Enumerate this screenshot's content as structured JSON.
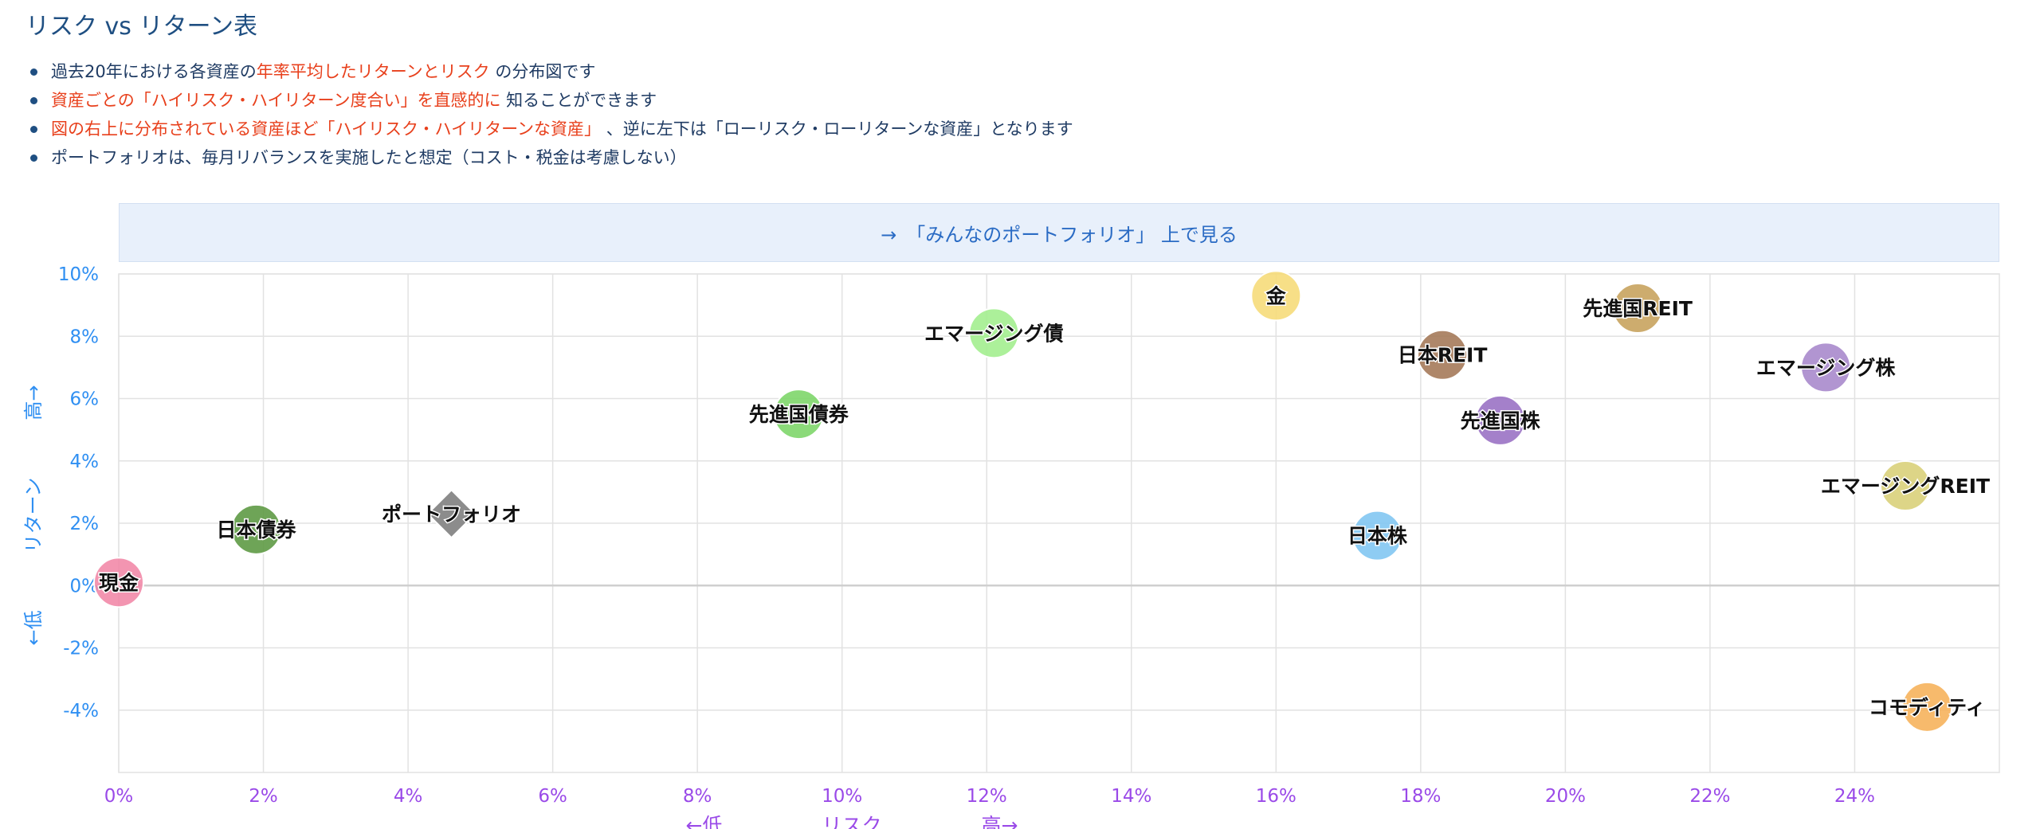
{
  "page": {
    "title": "リスク vs リターン表",
    "bullets": [
      [
        {
          "text": "過去20年における各資産の",
          "red": false
        },
        {
          "text": "年率平均したリターンとリスク",
          "red": true
        },
        {
          "text": " の分布図です",
          "red": false
        }
      ],
      [
        {
          "text": "資産ごとの「ハイリスク・ハイリターン度合い」を直感的に",
          "red": true
        },
        {
          "text": " 知ることができます",
          "red": false
        }
      ],
      [
        {
          "text": "図の右上に分布されている資産ほど「ハイリスク・ハイリターンな資産」",
          "red": true
        },
        {
          "text": " 、逆に左下は「ローリスク・ローリターンな資産」となります",
          "red": false
        }
      ],
      [
        {
          "text": "ポートフォリオは、毎月リバランスを実施したと想定（コスト・税金は考慮しない）",
          "red": false
        }
      ]
    ],
    "link_label": "→　「みんなのポートフォリオ」 上で見る"
  },
  "chart_data": {
    "type": "scatter",
    "xlabel": "←低　　　　　リスク　　　　　高→",
    "ylabel": "←低　　　リターン　　　高→",
    "xlim": [
      0,
      26
    ],
    "ylim": [
      -6,
      10
    ],
    "x_ticks": [
      0,
      2,
      4,
      6,
      8,
      10,
      12,
      14,
      16,
      18,
      20,
      22,
      24
    ],
    "y_ticks": [
      10,
      8,
      6,
      4,
      2,
      0,
      -2,
      -4
    ],
    "tick_suffix": "%",
    "grid": true,
    "points": [
      {
        "name": "現金",
        "x": 0.0,
        "y": 0.1,
        "color": "#f28aa8",
        "shape": "circle"
      },
      {
        "name": "日本債券",
        "x": 1.9,
        "y": 1.8,
        "color": "#5e9a45",
        "shape": "circle"
      },
      {
        "name": "ポートフォリオ",
        "x": 4.6,
        "y": 2.3,
        "color": "#8c8c8c",
        "shape": "diamond"
      },
      {
        "name": "先進国債券",
        "x": 9.4,
        "y": 5.5,
        "color": "#7ed66a",
        "shape": "circle"
      },
      {
        "name": "エマージング債",
        "x": 12.1,
        "y": 8.1,
        "color": "#a3ee8f",
        "shape": "circle"
      },
      {
        "name": "金",
        "x": 16.0,
        "y": 9.3,
        "color": "#f6dc7a",
        "shape": "circle"
      },
      {
        "name": "日本株",
        "x": 17.4,
        "y": 1.6,
        "color": "#82c6f2",
        "shape": "circle"
      },
      {
        "name": "日本REIT",
        "x": 18.3,
        "y": 7.4,
        "color": "#a57a5a",
        "shape": "circle"
      },
      {
        "name": "先進国株",
        "x": 19.1,
        "y": 5.3,
        "color": "#9a72c4",
        "shape": "circle"
      },
      {
        "name": "先進国REIT",
        "x": 21.0,
        "y": 8.9,
        "color": "#c8a35e",
        "shape": "circle"
      },
      {
        "name": "エマージング株",
        "x": 23.6,
        "y": 7.0,
        "color": "#a98acc",
        "shape": "circle"
      },
      {
        "name": "エマージングREIT",
        "x": 24.7,
        "y": 3.2,
        "color": "#d9d07a",
        "shape": "circle"
      },
      {
        "name": "コモディティ",
        "x": 25.0,
        "y": -3.9,
        "color": "#f6b35c",
        "shape": "circle"
      }
    ],
    "colors": {
      "y_tick": "#2f8ff2",
      "x_tick": "#9a4ae8",
      "grid": "#e2e2e2",
      "zero_line": "#cfcfcf"
    }
  }
}
